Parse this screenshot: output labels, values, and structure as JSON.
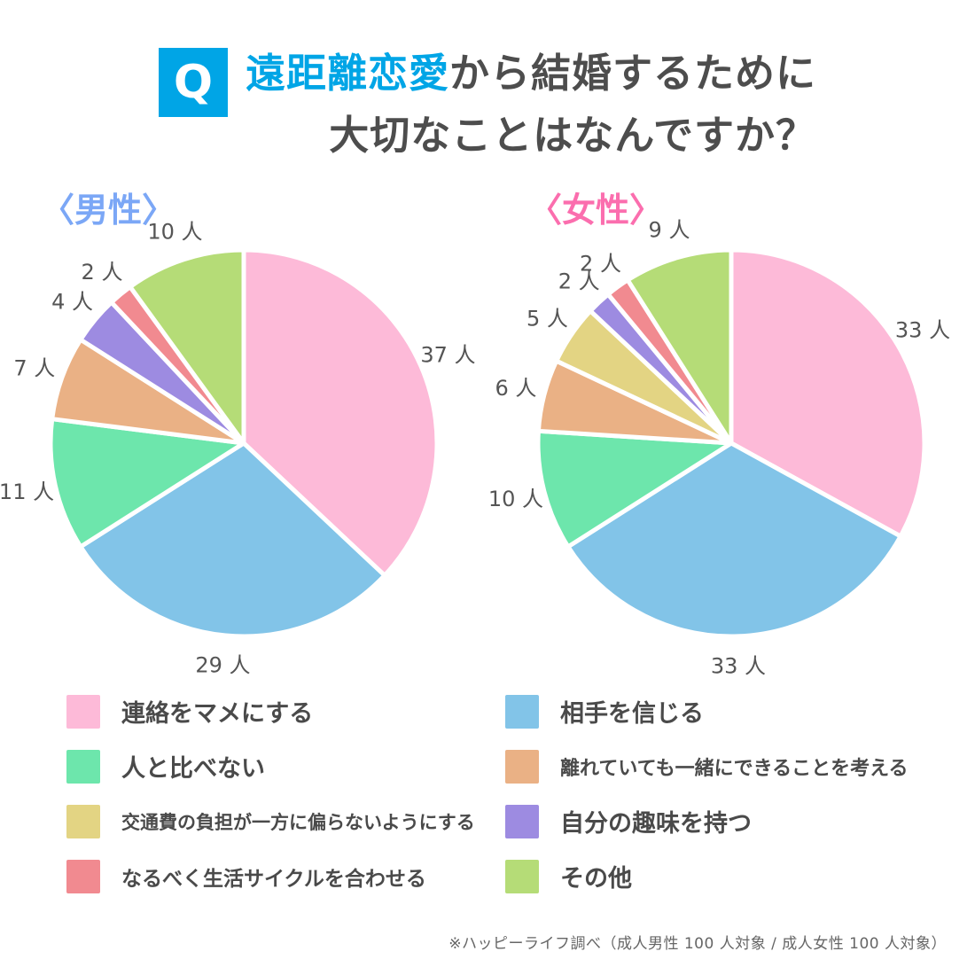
{
  "header": {
    "q_label": "Q",
    "accent_color": "#00A5E6",
    "title": {
      "line1_highlight": "遠距離恋愛",
      "line1_rest": "から結婚するために",
      "line2": "大切なことはなんですか？"
    },
    "title_text_color": "#4D4D4D"
  },
  "chart_data": [
    {
      "type": "pie",
      "title": "〈男性〉",
      "title_color": "#7BA7F6",
      "unit": "人",
      "start_angle_deg": 0,
      "direction": "clockwise",
      "legend_position": "bottom",
      "categories": [
        "連絡をマメにする",
        "相手を信じる",
        "人と比べない",
        "離れていても一緒にできることを考える",
        "交通費の負担が一方に偏らないようにする",
        "自分の趣味を持つ",
        "なるべく生活サイクルを合わせる",
        "その他"
      ],
      "values": [
        37,
        29,
        11,
        7,
        0,
        4,
        2,
        10
      ],
      "colors": [
        "#FDBAD8",
        "#82C4E8",
        "#6DE6AC",
        "#EAB185",
        "#E3D483",
        "#9D8BE1",
        "#F18A90",
        "#B5DC77"
      ]
    },
    {
      "type": "pie",
      "title": "〈女性〉",
      "title_color": "#FB6EAE",
      "unit": "人",
      "start_angle_deg": 0,
      "direction": "clockwise",
      "legend_position": "bottom",
      "categories": [
        "連絡をマメにする",
        "相手を信じる",
        "人と比べない",
        "離れていても一緒にできることを考える",
        "交通費の負担が一方に偏らないようにする",
        "自分の趣味を持つ",
        "なるべく生活サイクルを合わせる",
        "その他"
      ],
      "values": [
        33,
        33,
        10,
        6,
        5,
        2,
        2,
        9
      ],
      "colors": [
        "#FDBAD8",
        "#82C4E8",
        "#6DE6AC",
        "#EAB185",
        "#E3D483",
        "#9D8BE1",
        "#F18A90",
        "#B5DC77"
      ]
    }
  ],
  "legend": {
    "items": [
      {
        "label": "連絡をマメにする",
        "color": "#FDBAD8"
      },
      {
        "label": "相手を信じる",
        "color": "#82C4E8"
      },
      {
        "label": "人と比べない",
        "color": "#6DE6AC"
      },
      {
        "label": "離れていても一緒にできることを考える",
        "color": "#EAB185"
      },
      {
        "label": "交通費の負担が一方に偏らないようにする",
        "color": "#E3D483"
      },
      {
        "label": "自分の趣味を持つ",
        "color": "#9D8BE1"
      },
      {
        "label": "なるべく生活サイクルを合わせる",
        "color": "#F18A90"
      },
      {
        "label": "その他",
        "color": "#B5DC77"
      }
    ]
  },
  "footer": {
    "note": "※ハッピーライフ調べ（成人男性 100 人対象 / 成人女性 100 人対象）"
  }
}
